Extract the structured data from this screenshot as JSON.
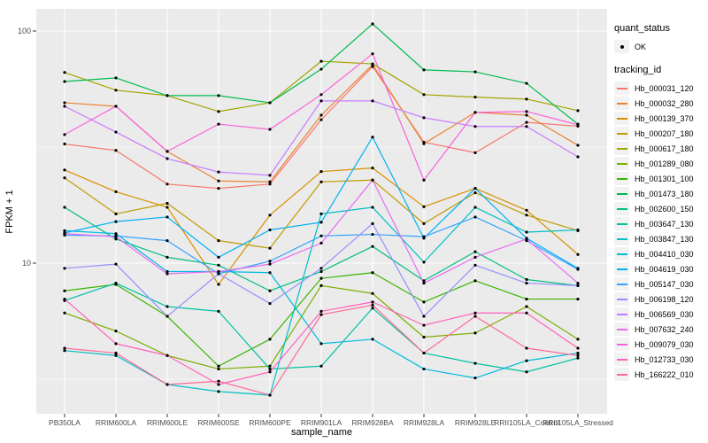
{
  "legend": {
    "quant_status_title": "quant_status",
    "quant_status_value": "OK",
    "tracking_id_title": "tracking_id"
  },
  "style": {
    "panel_bg": "#EBEBEB",
    "grid_color": "#FFFFFF",
    "tick_color": "#333333",
    "tick_text_color": "#4D4D4D",
    "point_color": "#000000",
    "legend_key_bg": "#F2F2F2"
  },
  "chart_data": {
    "type": "line",
    "title": "",
    "xlabel": "sample_name",
    "ylabel": "FPKM + 1",
    "y_scale": "log10",
    "ylim": [
      2.2,
      124
    ],
    "y_ticks": [
      100,
      10
    ],
    "y_minor_ticks": [
      31.623,
      3.1623
    ],
    "grid": true,
    "legend_position": "right",
    "marker": "black point (quant_status OK)",
    "categories": [
      "PB350LA",
      "RRIM600LA",
      "RRIM600LE",
      "RRIM600SE",
      "RRIM600PE",
      "RRIM901LA",
      "RRIM928BA",
      "RRIM928LA",
      "RRIM928LE",
      "RRII105LA_Control",
      "RRII105LA_Stressed"
    ],
    "series": [
      {
        "name": "Hb_000031_120",
        "color": "#F8766D",
        "values": [
          32.6,
          30.6,
          21.9,
          21.0,
          21.9,
          41.5,
          70.3,
          33.2,
          29.9,
          40.4,
          38.9
        ]
      },
      {
        "name": "Hb_000032_280",
        "color": "#EA8331",
        "values": [
          49.1,
          47.4,
          30.3,
          22.6,
          22.4,
          43.4,
          71.6,
          32.7,
          44.6,
          43.4,
          32.2
        ]
      },
      {
        "name": "Hb_000139_370",
        "color": "#D89000",
        "values": [
          25.2,
          20.3,
          17.4,
          8.1,
          16.1,
          24.8,
          25.7,
          17.5,
          21.0,
          16.9,
          10.9
        ]
      },
      {
        "name": "Hb_000207_180",
        "color": "#C09B00",
        "values": [
          23.3,
          16.3,
          18.1,
          12.5,
          11.6,
          22.4,
          22.8,
          14.8,
          20.1,
          16.1,
          13.8
        ]
      },
      {
        "name": "Hb_000617_180",
        "color": "#A3A500",
        "values": [
          66.3,
          55.6,
          52.7,
          45.0,
          49.1,
          74.1,
          72.2,
          53.2,
          51.9,
          50.9,
          45.4
        ]
      },
      {
        "name": "Hb_001289_080",
        "color": "#7CAE00",
        "values": [
          6.1,
          5.1,
          4.0,
          3.5,
          3.6,
          8.0,
          7.4,
          4.8,
          5.0,
          6.5,
          4.7
        ]
      },
      {
        "name": "Hb_001301_100",
        "color": "#39B600",
        "values": [
          7.6,
          8.1,
          5.9,
          3.6,
          4.7,
          8.6,
          9.1,
          6.8,
          8.4,
          7.0,
          7.0
        ]
      },
      {
        "name": "Hb_001473_180",
        "color": "#00BB4E",
        "values": [
          60.6,
          62.8,
          52.7,
          52.7,
          49.1,
          68.5,
          107.3,
          68.0,
          66.7,
          59.5,
          39.7
        ]
      },
      {
        "name": "Hb_002600_150",
        "color": "#00BF7D",
        "values": [
          17.4,
          12.7,
          10.6,
          9.8,
          7.6,
          9.2,
          11.8,
          8.4,
          11.2,
          8.5,
          8.0
        ]
      },
      {
        "name": "Hb_003647_130",
        "color": "#00C1A3",
        "values": [
          6.9,
          8.2,
          6.5,
          6.2,
          3.5,
          3.6,
          6.4,
          4.1,
          3.7,
          3.4,
          3.9
        ]
      },
      {
        "name": "Hb_003847_130",
        "color": "#00BFC4",
        "values": [
          4.2,
          4.0,
          3.0,
          2.8,
          2.7,
          16.3,
          17.4,
          10.1,
          17.4,
          13.6,
          13.9
        ]
      },
      {
        "name": "Hb_004410_030",
        "color": "#00BAE0",
        "values": [
          13.8,
          13.4,
          9.2,
          9.2,
          9.1,
          4.5,
          4.7,
          3.5,
          3.2,
          3.8,
          4.1
        ]
      },
      {
        "name": "Hb_004619_030",
        "color": "#00B0F6",
        "values": [
          13.5,
          15.1,
          15.8,
          10.6,
          13.9,
          15.0,
          34.9,
          12.8,
          21.0,
          12.8,
          9.5
        ]
      },
      {
        "name": "Hb_005147_030",
        "color": "#35A2FF",
        "values": [
          13.2,
          13.1,
          12.5,
          9.0,
          10.2,
          13.1,
          13.3,
          13.0,
          15.8,
          12.5,
          9.4
        ]
      },
      {
        "name": "Hb_006198_120",
        "color": "#9590FF",
        "values": [
          9.5,
          9.9,
          5.9,
          9.0,
          6.7,
          9.5,
          14.8,
          5.9,
          9.8,
          8.2,
          8.0
        ]
      },
      {
        "name": "Hb_006569_030",
        "color": "#C77CFF",
        "values": [
          47.4,
          36.7,
          28.2,
          24.7,
          23.9,
          50.0,
          50.0,
          42.3,
          38.8,
          38.8,
          28.7
        ]
      },
      {
        "name": "Hb_007632_240",
        "color": "#E76BF3",
        "values": [
          13.4,
          13.0,
          9.0,
          9.2,
          9.9,
          12.2,
          22.8,
          8.2,
          10.6,
          12.7,
          8.2
        ]
      },
      {
        "name": "Hb_009079_030",
        "color": "#FA62DB",
        "values": [
          35.8,
          47.4,
          30.3,
          39.7,
          37.7,
          53.2,
          79.8,
          22.8,
          44.6,
          45.0,
          39.4
        ]
      },
      {
        "name": "Hb_012733_030",
        "color": "#FF62BC",
        "values": [
          7.0,
          4.5,
          4.0,
          3.0,
          3.4,
          6.2,
          6.8,
          5.4,
          6.1,
          6.1,
          4.3
        ]
      },
      {
        "name": "Hb_166222_010",
        "color": "#FF6A98",
        "values": [
          4.3,
          4.1,
          3.0,
          3.1,
          2.7,
          6.0,
          6.6,
          4.1,
          5.9,
          4.3,
          4.0
        ]
      }
    ]
  }
}
